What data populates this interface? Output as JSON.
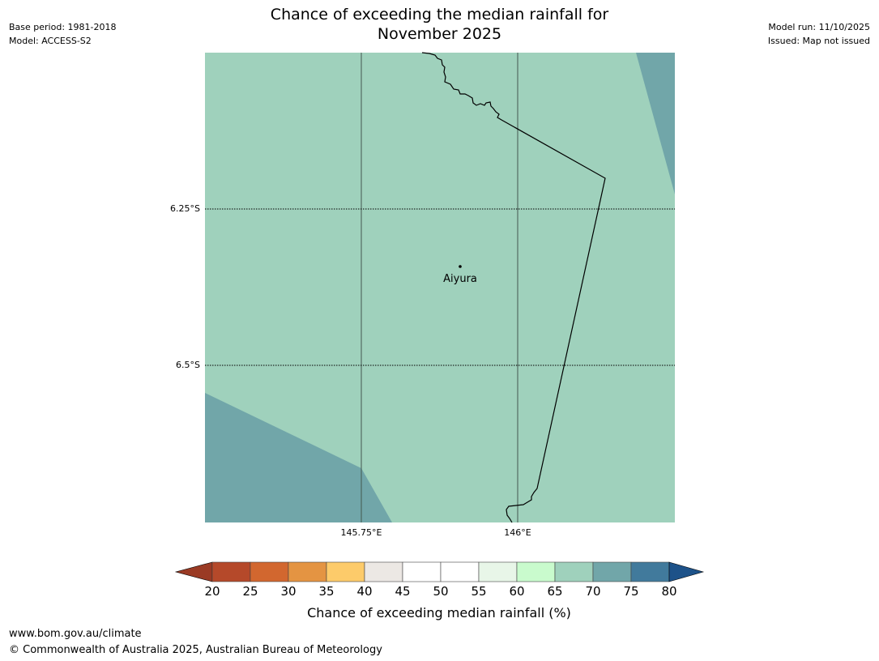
{
  "header": {
    "base_period": "Base period: 1981-2018",
    "model": "Model: ACCESS-S2",
    "model_run": "Model run: 11/10/2025",
    "issued": "Issued: Map not issued"
  },
  "title": {
    "line1": "Chance of exceeding the median rainfall for",
    "line2": "November 2025"
  },
  "map": {
    "place_label": "Aiyura",
    "lat_labels": [
      "6.25°S",
      "6.5°S"
    ],
    "lon_labels": [
      "145.75°E",
      "146°E"
    ],
    "fill_color_main": "#9fd1bc",
    "fill_color_high": "#71a6a9"
  },
  "colorbar": {
    "ticks": [
      "20",
      "25",
      "30",
      "35",
      "40",
      "45",
      "50",
      "55",
      "60",
      "65",
      "70",
      "75",
      "80"
    ],
    "colors": [
      "#9a3a24",
      "#b5492a",
      "#d2672f",
      "#e49442",
      "#fdcb6a",
      "#ece8e4",
      "#ffffff",
      "#ffffff",
      "#e8f6e8",
      "#c9fbcd",
      "#9fd1bc",
      "#71a6a9",
      "#417a9c",
      "#1d5289"
    ],
    "label": "Chance of exceeding median rainfall (%)"
  },
  "footer": {
    "url": "www.bom.gov.au/climate",
    "copyright": "© Commonwealth of Australia 2025, Australian Bureau of Meteorology"
  }
}
